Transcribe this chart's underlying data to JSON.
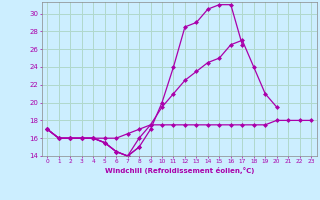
{
  "xlabel": "Windchill (Refroidissement éolien,°C)",
  "bg_color": "#cceeff",
  "grid_color": "#b0d8cc",
  "line_color": "#aa00aa",
  "x": [
    0,
    1,
    2,
    3,
    4,
    5,
    6,
    7,
    8,
    9,
    10,
    11,
    12,
    13,
    14,
    15,
    16,
    17,
    18,
    19,
    20,
    21,
    22,
    23
  ],
  "line1": [
    17,
    16,
    16,
    16,
    16,
    15.5,
    14.5,
    14,
    15,
    null,
    null,
    null,
    null,
    null,
    null,
    null,
    null,
    null,
    null,
    null,
    null,
    null,
    null,
    null
  ],
  "line2": [
    17,
    16,
    16,
    16,
    16,
    15.5,
    14.5,
    14,
    15,
    17,
    20,
    24,
    28.5,
    29,
    30.5,
    31,
    31,
    26.5,
    null,
    null,
    null,
    null,
    null,
    null
  ],
  "line3": [
    17,
    16,
    16,
    16,
    16,
    15.5,
    14.5,
    14,
    16,
    17.5,
    19.5,
    21,
    22.5,
    23.5,
    24.5,
    25,
    26.5,
    27,
    24,
    21,
    19.5,
    null,
    null,
    null
  ],
  "line4": [
    17,
    16,
    16,
    16,
    16,
    16,
    16,
    16.5,
    17,
    17.5,
    17.5,
    17.5,
    17.5,
    17.5,
    17.5,
    17.5,
    17.5,
    17.5,
    17.5,
    17.5,
    18,
    18,
    18,
    18
  ],
  "ylim": [
    14,
    31
  ],
  "xlim": [
    -0.5,
    23.5
  ],
  "yticks": [
    14,
    16,
    18,
    20,
    22,
    24,
    26,
    28,
    30
  ],
  "xticks": [
    0,
    1,
    2,
    3,
    4,
    5,
    6,
    7,
    8,
    9,
    10,
    11,
    12,
    13,
    14,
    15,
    16,
    17,
    18,
    19,
    20,
    21,
    22,
    23
  ]
}
